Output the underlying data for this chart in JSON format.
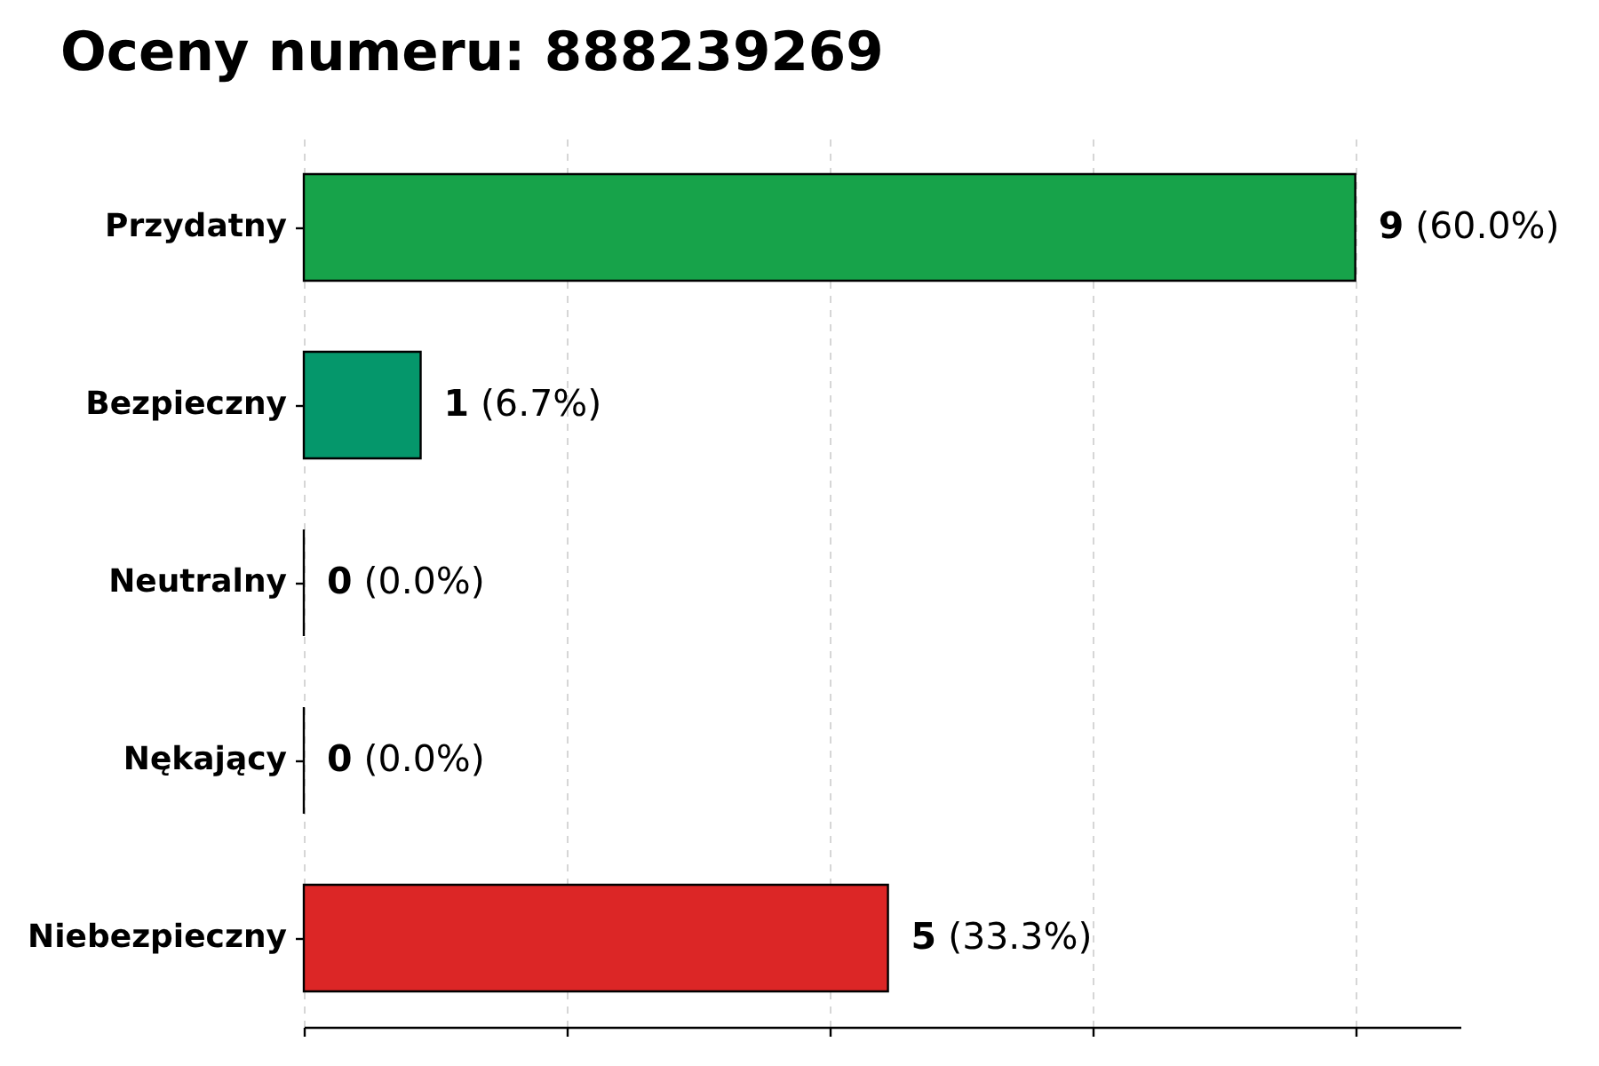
{
  "chart_data": {
    "type": "bar",
    "orientation": "horizontal",
    "title": "Oceny numeru: 888239269",
    "categories": [
      "Przydatny",
      "Bezpieczny",
      "Neutralny",
      "Nękający",
      "Niebezpieczny"
    ],
    "values": [
      9,
      1,
      0,
      0,
      5
    ],
    "colors": [
      "#17a34a",
      "#05976b",
      "#000000",
      "#000000",
      "#dc2626"
    ],
    "data_labels": true,
    "annotations": [
      {
        "text": "(60.0%)",
        "x": 9,
        "y": "Przydatny"
      },
      {
        "text": "(6.7%)",
        "x": 1,
        "y": "Bezpieczny"
      },
      {
        "text": "(0.0%)",
        "x": 0,
        "y": "Neutralny"
      },
      {
        "text": "(0.0%)",
        "x": 0,
        "y": "Nękający"
      },
      {
        "text": "(33.3%)",
        "x": 5,
        "y": "Niebezpieczny"
      }
    ],
    "xlim": [
      0,
      9.9
    ],
    "xticks": [
      {
        "value": 0,
        "label": null
      },
      {
        "value": 2.25,
        "label": null
      },
      {
        "value": 4.5,
        "label": null
      },
      {
        "value": 6.75,
        "label": null
      },
      {
        "value": 9,
        "label": null
      }
    ],
    "grid": "x",
    "tick_labels": "y"
  }
}
